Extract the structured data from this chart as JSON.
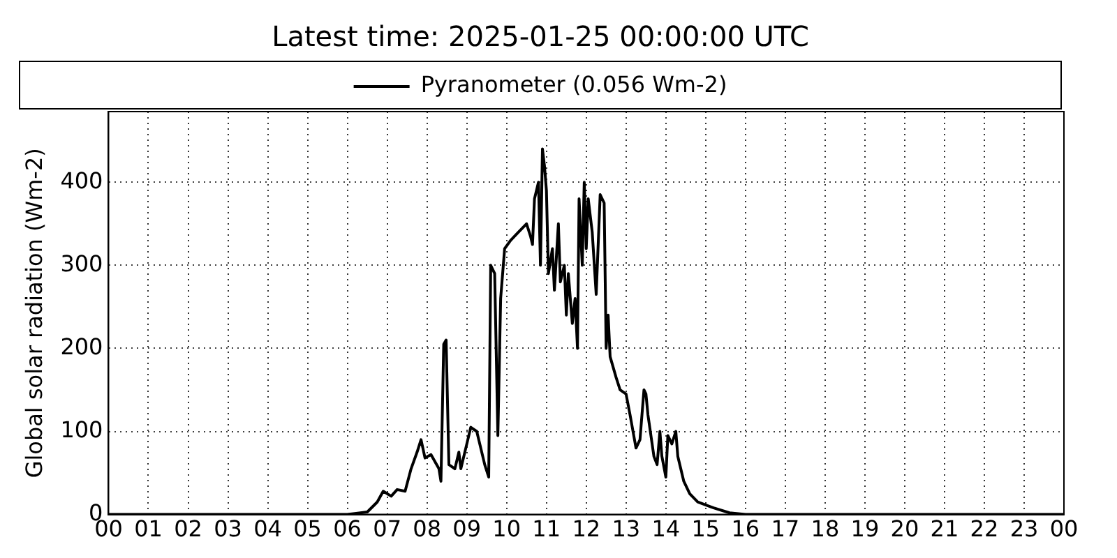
{
  "chart_data": {
    "type": "line",
    "title": "Latest time: 2025-01-25 00:00:00 UTC",
    "ylabel": "Global solar radiation (Wm-2)",
    "x": [
      0,
      6.0,
      6.5,
      6.75,
      6.9,
      7.1,
      7.25,
      7.45,
      7.6,
      7.75,
      7.85,
      7.95,
      8.1,
      8.3,
      8.35,
      8.42,
      8.48,
      8.55,
      8.7,
      8.8,
      8.85,
      9.0,
      9.1,
      9.25,
      9.45,
      9.55,
      9.6,
      9.7,
      9.78,
      9.85,
      9.95,
      10.1,
      10.3,
      10.5,
      10.6,
      10.65,
      10.7,
      10.8,
      10.85,
      10.9,
      10.95,
      11.0,
      11.05,
      11.15,
      11.2,
      11.3,
      11.35,
      11.45,
      11.5,
      11.55,
      11.65,
      11.72,
      11.78,
      11.82,
      11.9,
      11.95,
      12.0,
      12.05,
      12.15,
      12.25,
      12.35,
      12.45,
      12.5,
      12.55,
      12.6,
      12.75,
      12.85,
      13.0,
      13.1,
      13.25,
      13.35,
      13.45,
      13.5,
      13.55,
      13.7,
      13.78,
      13.85,
      13.9,
      14.0,
      14.05,
      14.15,
      14.25,
      14.3,
      14.45,
      14.6,
      14.8,
      15.2,
      15.6,
      16.0,
      24
    ],
    "series": [
      {
        "name": "Pyranometer (0.056 Wm-2)",
        "color": "#000000",
        "values": [
          0,
          0,
          3,
          15,
          28,
          22,
          30,
          28,
          55,
          75,
          90,
          68,
          72,
          55,
          40,
          205,
          210,
          60,
          55,
          75,
          55,
          85,
          105,
          100,
          60,
          45,
          300,
          290,
          95,
          260,
          320,
          330,
          340,
          350,
          335,
          325,
          380,
          400,
          300,
          440,
          420,
          390,
          290,
          320,
          270,
          350,
          280,
          300,
          240,
          290,
          230,
          260,
          200,
          380,
          300,
          400,
          320,
          380,
          340,
          265,
          385,
          375,
          200,
          240,
          190,
          165,
          150,
          145,
          120,
          80,
          90,
          150,
          145,
          120,
          70,
          60,
          100,
          70,
          45,
          95,
          85,
          100,
          70,
          40,
          25,
          15,
          8,
          2,
          0,
          0
        ]
      }
    ],
    "xlim": [
      0,
      24
    ],
    "xticks": [
      {
        "value": 0,
        "label": "00"
      },
      {
        "value": 1,
        "label": "01"
      },
      {
        "value": 2,
        "label": "02"
      },
      {
        "value": 3,
        "label": "03"
      },
      {
        "value": 4,
        "label": "04"
      },
      {
        "value": 5,
        "label": "05"
      },
      {
        "value": 6,
        "label": "06"
      },
      {
        "value": 7,
        "label": "07"
      },
      {
        "value": 8,
        "label": "08"
      },
      {
        "value": 9,
        "label": "09"
      },
      {
        "value": 10,
        "label": "10"
      },
      {
        "value": 11,
        "label": "11"
      },
      {
        "value": 12,
        "label": "12"
      },
      {
        "value": 13,
        "label": "13"
      },
      {
        "value": 14,
        "label": "14"
      },
      {
        "value": 15,
        "label": "15"
      },
      {
        "value": 16,
        "label": "16"
      },
      {
        "value": 17,
        "label": "17"
      },
      {
        "value": 18,
        "label": "18"
      },
      {
        "value": 19,
        "label": "19"
      },
      {
        "value": 20,
        "label": "20"
      },
      {
        "value": 21,
        "label": "21"
      },
      {
        "value": 22,
        "label": "22"
      },
      {
        "value": 23,
        "label": "23"
      },
      {
        "value": 24,
        "label": "00"
      }
    ],
    "ylim": [
      0,
      485
    ],
    "yticks": [
      0,
      100,
      200,
      300,
      400
    ],
    "grid": true,
    "legend": "top",
    "marker": "none",
    "line_style": "solid"
  }
}
